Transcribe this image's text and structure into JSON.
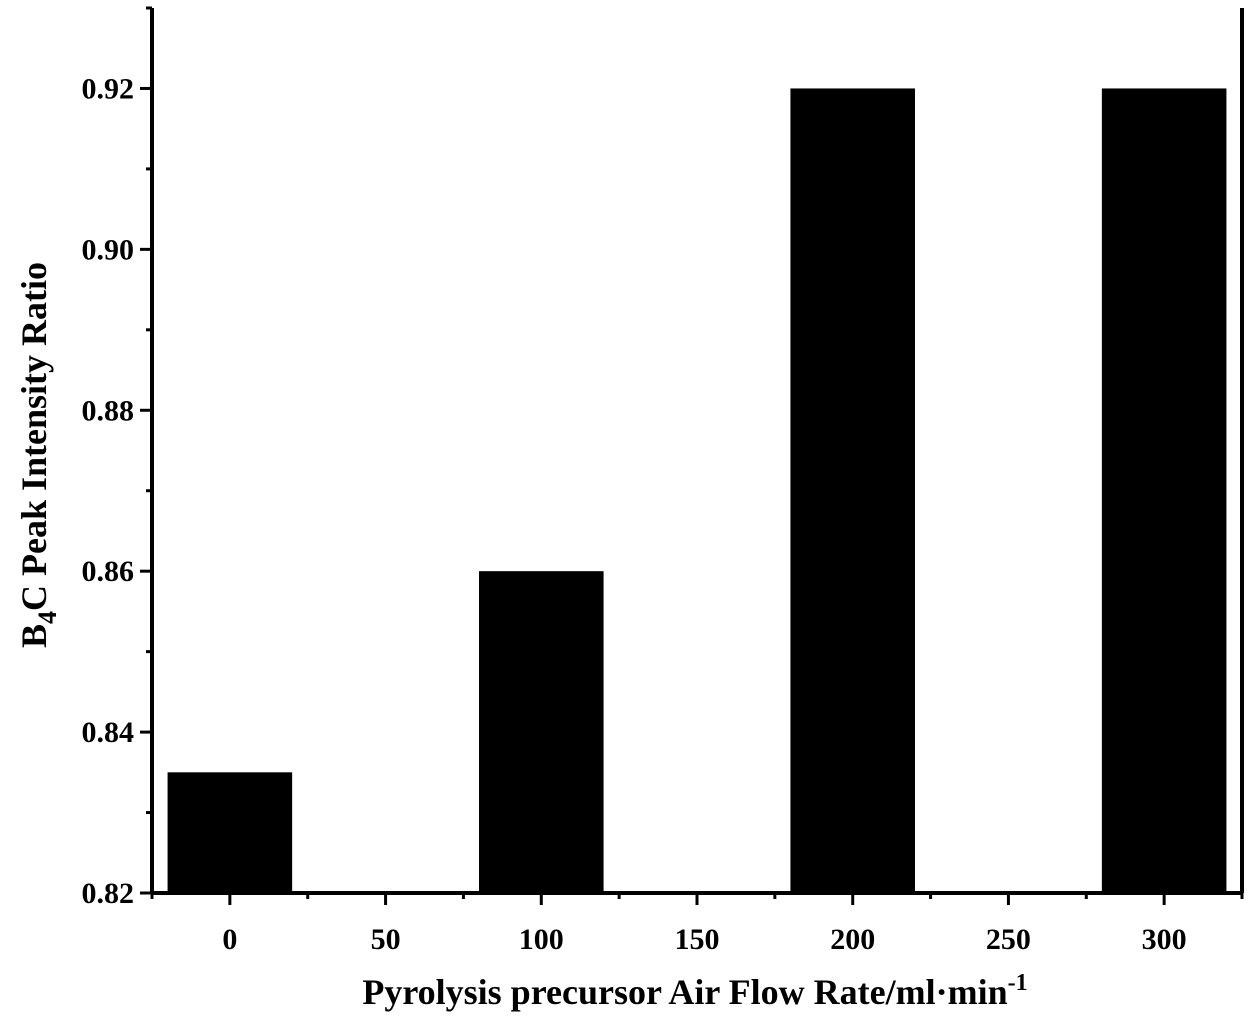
{
  "chart_data": {
    "type": "bar",
    "x": [
      0,
      100,
      200,
      300
    ],
    "values": [
      0.835,
      0.86,
      0.92,
      0.92
    ],
    "bar_width": 40,
    "bar_color": "#000000",
    "xlim": [
      -25,
      325
    ],
    "ylim": [
      0.82,
      0.93
    ],
    "xticks": [
      0,
      50,
      100,
      150,
      200,
      250,
      300
    ],
    "yticks": [
      0.82,
      0.84,
      0.86,
      0.88,
      0.9,
      0.92
    ],
    "xtick_labels": [
      "0",
      "50",
      "100",
      "150",
      "200",
      "250",
      "300"
    ],
    "ytick_labels": [
      "0.82",
      "0.84",
      "0.86",
      "0.88",
      "0.90",
      "0.92"
    ],
    "xlabel": "Pyrolysis precursor Air Flow Rate/ml·min",
    "xlabel_sup": "-1",
    "ylabel_main": "B",
    "ylabel_sub": "4",
    "ylabel_rest": "C Peak Intensity Ratio",
    "grid": false,
    "box": "left-bottom-right"
  }
}
